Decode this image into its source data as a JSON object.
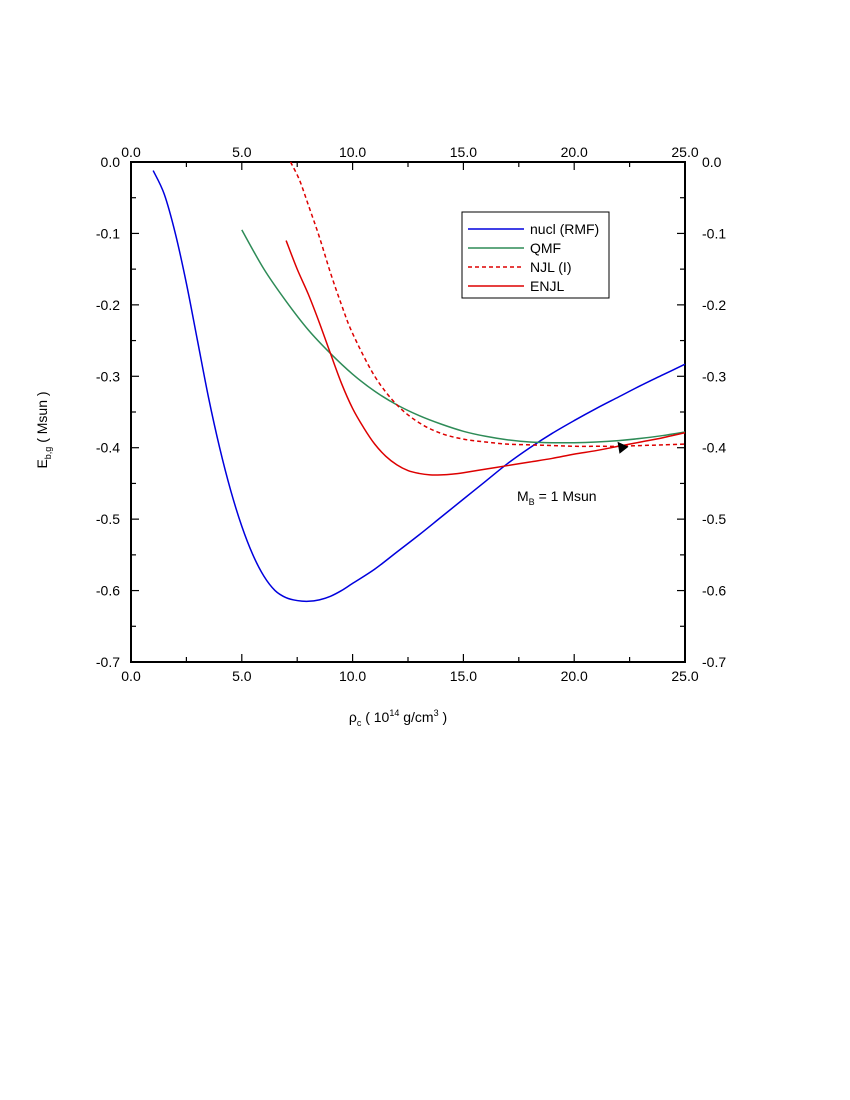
{
  "chart_data": {
    "type": "line",
    "title": "",
    "xlabel": {
      "symbol": "ρ",
      "symbol_sub": "c",
      "open": " ( 10",
      "exp": "14",
      "mid": " g/cm",
      "exp2": "3",
      "close": " )"
    },
    "ylabel": {
      "main": "E",
      "sub": "b,g",
      "rest": " ( Msun )"
    },
    "xlim": [
      0.0,
      25.0
    ],
    "ylim": [
      -0.7,
      0.0
    ],
    "x_ticks": [
      "0.0",
      "5.0",
      "10.0",
      "15.0",
      "20.0",
      "25.0"
    ],
    "x_tick_values": [
      0,
      5,
      10,
      15,
      20,
      25
    ],
    "y_ticks": [
      "0.0",
      "-0.1",
      "-0.2",
      "-0.3",
      "-0.4",
      "-0.5",
      "-0.6",
      "-0.7"
    ],
    "y_tick_values": [
      0.0,
      -0.1,
      -0.2,
      -0.3,
      -0.4,
      -0.5,
      -0.6,
      -0.7
    ],
    "legend_position": "top-right",
    "series": [
      {
        "name": "nucl (RMF)",
        "color": "#0000dd",
        "dash": "solid",
        "x": [
          1.0,
          1.5,
          2.0,
          2.5,
          3.0,
          3.5,
          4.0,
          4.5,
          5.0,
          5.5,
          6.0,
          6.5,
          7.0,
          7.5,
          8.0,
          8.5,
          9.0,
          9.5,
          10.0,
          11.0,
          12.0,
          13.0,
          14.0,
          15.0,
          16.0,
          17.0,
          18.0,
          19.0,
          20.0,
          21.0,
          22.0,
          23.0,
          24.0,
          25.0
        ],
        "y": [
          -0.012,
          -0.045,
          -0.1,
          -0.17,
          -0.25,
          -0.33,
          -0.4,
          -0.46,
          -0.51,
          -0.55,
          -0.58,
          -0.6,
          -0.61,
          -0.614,
          -0.615,
          -0.613,
          -0.608,
          -0.6,
          -0.59,
          -0.57,
          -0.546,
          -0.522,
          -0.497,
          -0.472,
          -0.447,
          -0.422,
          -0.4,
          -0.38,
          -0.362,
          -0.345,
          -0.329,
          -0.313,
          -0.298,
          -0.283
        ]
      },
      {
        "name": "QMF",
        "color": "#2e8b57",
        "dash": "solid",
        "x": [
          5.0,
          6.0,
          7.0,
          8.0,
          9.0,
          10.0,
          11.0,
          12.0,
          13.0,
          14.0,
          15.0,
          16.0,
          17.0,
          18.0,
          19.0,
          20.0,
          21.0,
          22.0,
          23.0,
          24.0,
          25.0
        ],
        "y": [
          -0.095,
          -0.15,
          -0.195,
          -0.235,
          -0.268,
          -0.297,
          -0.321,
          -0.34,
          -0.355,
          -0.367,
          -0.377,
          -0.384,
          -0.389,
          -0.392,
          -0.393,
          -0.393,
          -0.392,
          -0.39,
          -0.387,
          -0.383,
          -0.378
        ]
      },
      {
        "name": "NJL (I)",
        "color": "#dd0000",
        "dash": "dashed",
        "x": [
          7.2,
          7.6,
          8.0,
          8.5,
          9.0,
          9.5,
          10.0,
          11.0,
          12.0,
          13.0,
          14.0,
          15.0,
          16.0,
          17.0,
          18.0,
          19.0,
          20.0,
          21.0,
          22.0,
          23.0,
          24.0,
          25.0
        ],
        "y": [
          0.0,
          -0.025,
          -0.06,
          -0.105,
          -0.155,
          -0.2,
          -0.24,
          -0.3,
          -0.34,
          -0.365,
          -0.38,
          -0.388,
          -0.392,
          -0.395,
          -0.396,
          -0.397,
          -0.398,
          -0.398,
          -0.398,
          -0.397,
          -0.396,
          -0.395
        ]
      },
      {
        "name": "ENJL",
        "color": "#dd0000",
        "dash": "solid",
        "x": [
          7.0,
          7.5,
          8.0,
          8.5,
          9.0,
          9.5,
          10.0,
          10.5,
          11.0,
          11.5,
          12.0,
          12.5,
          13.0,
          13.5,
          14.0,
          14.5,
          15.0,
          16.0,
          17.0,
          18.0,
          19.0,
          20.0,
          21.0,
          22.0,
          23.0,
          24.0,
          25.0
        ],
        "y": [
          -0.11,
          -0.15,
          -0.185,
          -0.225,
          -0.268,
          -0.31,
          -0.345,
          -0.372,
          -0.395,
          -0.412,
          -0.424,
          -0.432,
          -0.436,
          -0.438,
          -0.438,
          -0.437,
          -0.435,
          -0.43,
          -0.425,
          -0.42,
          -0.415,
          -0.409,
          -0.404,
          -0.398,
          -0.392,
          -0.386,
          -0.379
        ]
      }
    ],
    "annotation": {
      "main": "M",
      "sub": "B",
      "rest": " = 1 Msun",
      "arrow_target": [
        22.0,
        -0.4
      ]
    }
  }
}
